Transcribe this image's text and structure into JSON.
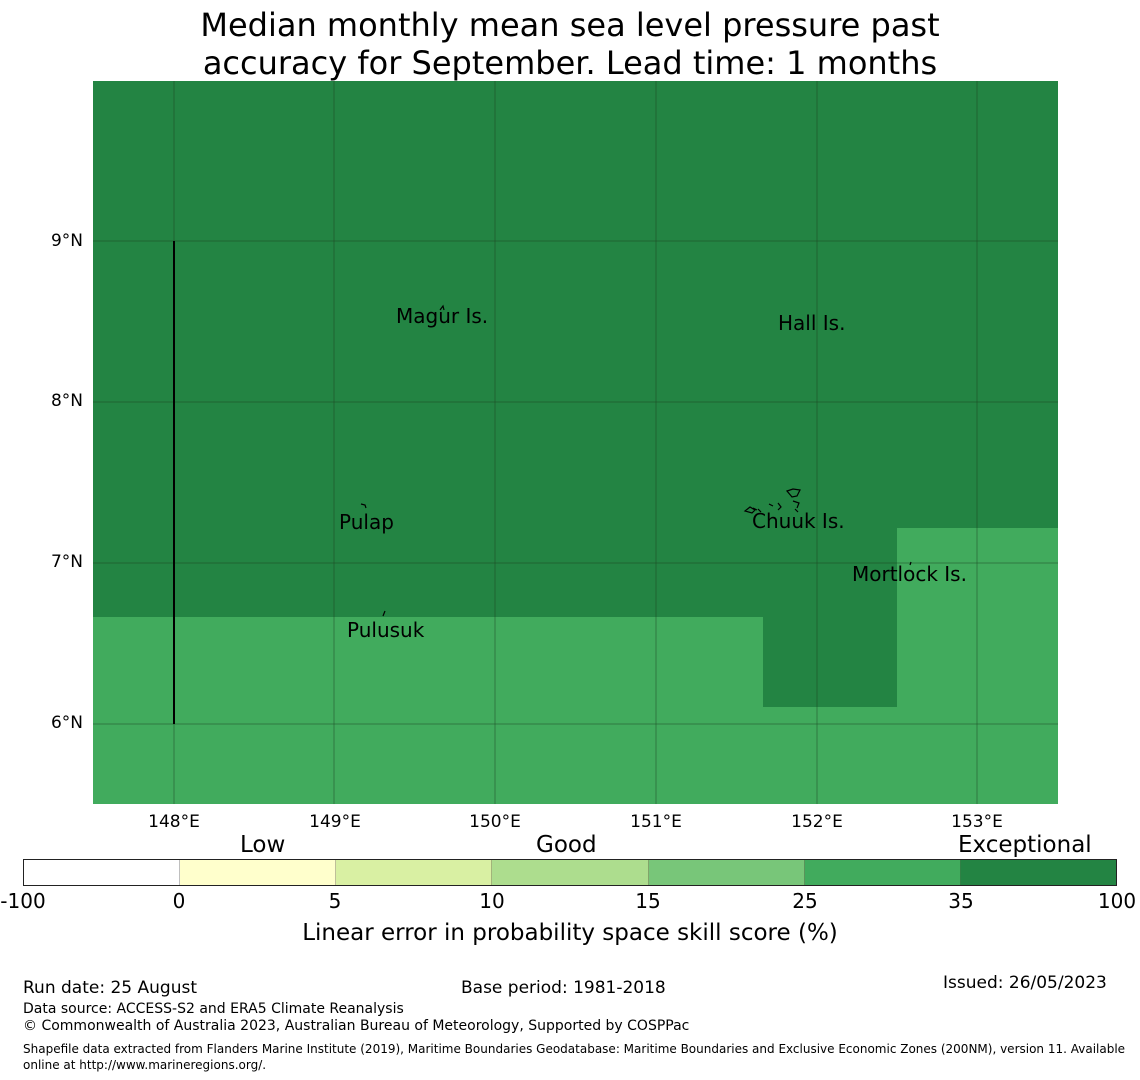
{
  "title_line1": "Median monthly mean sea level pressure past",
  "title_line2": "accuracy for September. Lead time: 1 months",
  "map": {
    "lat_labels": [
      "9°N",
      "8°N",
      "7°N",
      "6°N"
    ],
    "lon_labels": [
      "148°E",
      "149°E",
      "150°E",
      "151°E",
      "152°E",
      "153°E"
    ],
    "places": [
      "Magur Is.",
      "Hall Is.",
      "Pulap",
      "Chuuk Is.",
      "Mortlock Is.",
      "Pulusuk"
    ],
    "colors": {
      "exceptional_dark": "#238443",
      "high_green": "#41ab5d",
      "grid": "#1a3d20"
    }
  },
  "legend": {
    "categories": [
      "Low",
      "Good",
      "Exceptional"
    ],
    "ticks": [
      "-100",
      "0",
      "5",
      "10",
      "15",
      "25",
      "35",
      "100"
    ],
    "colors": [
      "#ffffff",
      "#ffffcc",
      "#d9f0a3",
      "#addd8e",
      "#78c679",
      "#41ab5d",
      "#238443"
    ],
    "label": "Linear error in probability space skill score (%)"
  },
  "footer": {
    "run_date": "Run date: 25 August",
    "base_period": "Base period: 1981-2018",
    "issued": "Issued: 26/05/2023",
    "data_source": "Data source: ACCESS-S2 and ERA5 Climate Reanalysis",
    "copyright": "© Commonwealth of Australia 2023, Australian Bureau of Meteorology, Supported by COSPPac",
    "shapefile": "Shapefile data extracted from Flanders Marine Institute (2019), Maritime Boundaries Geodatabase: Maritime Boundaries and Exclusive Economic Zones (200NM), version 11. Available online at http://www.marineregions.org/."
  }
}
